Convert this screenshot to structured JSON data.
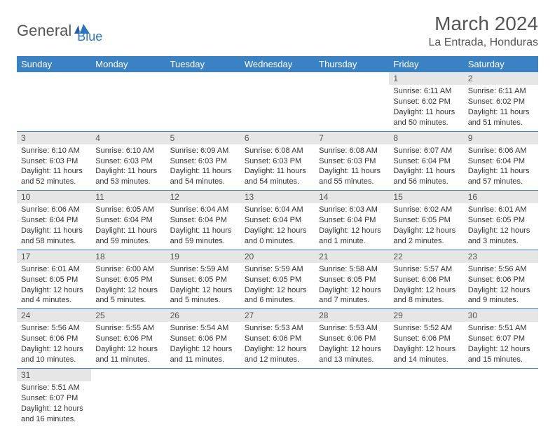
{
  "logo": {
    "text1": "General",
    "text2": "Blue"
  },
  "title": "March 2024",
  "location": "La Entrada, Honduras",
  "colors": {
    "header_bg": "#3b82c4",
    "header_text": "#ffffff",
    "daynum_bg": "#e6e6e6",
    "border": "#3b82c4",
    "text": "#333333",
    "logo_gray": "#555555",
    "logo_blue": "#2a75bb"
  },
  "weekdays": [
    "Sunday",
    "Monday",
    "Tuesday",
    "Wednesday",
    "Thursday",
    "Friday",
    "Saturday"
  ],
  "weeks": [
    [
      null,
      null,
      null,
      null,
      null,
      {
        "n": "1",
        "sr": "Sunrise: 6:11 AM",
        "ss": "Sunset: 6:02 PM",
        "dl": "Daylight: 11 hours and 50 minutes."
      },
      {
        "n": "2",
        "sr": "Sunrise: 6:11 AM",
        "ss": "Sunset: 6:02 PM",
        "dl": "Daylight: 11 hours and 51 minutes."
      }
    ],
    [
      {
        "n": "3",
        "sr": "Sunrise: 6:10 AM",
        "ss": "Sunset: 6:03 PM",
        "dl": "Daylight: 11 hours and 52 minutes."
      },
      {
        "n": "4",
        "sr": "Sunrise: 6:10 AM",
        "ss": "Sunset: 6:03 PM",
        "dl": "Daylight: 11 hours and 53 minutes."
      },
      {
        "n": "5",
        "sr": "Sunrise: 6:09 AM",
        "ss": "Sunset: 6:03 PM",
        "dl": "Daylight: 11 hours and 54 minutes."
      },
      {
        "n": "6",
        "sr": "Sunrise: 6:08 AM",
        "ss": "Sunset: 6:03 PM",
        "dl": "Daylight: 11 hours and 54 minutes."
      },
      {
        "n": "7",
        "sr": "Sunrise: 6:08 AM",
        "ss": "Sunset: 6:03 PM",
        "dl": "Daylight: 11 hours and 55 minutes."
      },
      {
        "n": "8",
        "sr": "Sunrise: 6:07 AM",
        "ss": "Sunset: 6:04 PM",
        "dl": "Daylight: 11 hours and 56 minutes."
      },
      {
        "n": "9",
        "sr": "Sunrise: 6:06 AM",
        "ss": "Sunset: 6:04 PM",
        "dl": "Daylight: 11 hours and 57 minutes."
      }
    ],
    [
      {
        "n": "10",
        "sr": "Sunrise: 6:06 AM",
        "ss": "Sunset: 6:04 PM",
        "dl": "Daylight: 11 hours and 58 minutes."
      },
      {
        "n": "11",
        "sr": "Sunrise: 6:05 AM",
        "ss": "Sunset: 6:04 PM",
        "dl": "Daylight: 11 hours and 59 minutes."
      },
      {
        "n": "12",
        "sr": "Sunrise: 6:04 AM",
        "ss": "Sunset: 6:04 PM",
        "dl": "Daylight: 11 hours and 59 minutes."
      },
      {
        "n": "13",
        "sr": "Sunrise: 6:04 AM",
        "ss": "Sunset: 6:04 PM",
        "dl": "Daylight: 12 hours and 0 minutes."
      },
      {
        "n": "14",
        "sr": "Sunrise: 6:03 AM",
        "ss": "Sunset: 6:04 PM",
        "dl": "Daylight: 12 hours and 1 minute."
      },
      {
        "n": "15",
        "sr": "Sunrise: 6:02 AM",
        "ss": "Sunset: 6:05 PM",
        "dl": "Daylight: 12 hours and 2 minutes."
      },
      {
        "n": "16",
        "sr": "Sunrise: 6:01 AM",
        "ss": "Sunset: 6:05 PM",
        "dl": "Daylight: 12 hours and 3 minutes."
      }
    ],
    [
      {
        "n": "17",
        "sr": "Sunrise: 6:01 AM",
        "ss": "Sunset: 6:05 PM",
        "dl": "Daylight: 12 hours and 4 minutes."
      },
      {
        "n": "18",
        "sr": "Sunrise: 6:00 AM",
        "ss": "Sunset: 6:05 PM",
        "dl": "Daylight: 12 hours and 5 minutes."
      },
      {
        "n": "19",
        "sr": "Sunrise: 5:59 AM",
        "ss": "Sunset: 6:05 PM",
        "dl": "Daylight: 12 hours and 5 minutes."
      },
      {
        "n": "20",
        "sr": "Sunrise: 5:59 AM",
        "ss": "Sunset: 6:05 PM",
        "dl": "Daylight: 12 hours and 6 minutes."
      },
      {
        "n": "21",
        "sr": "Sunrise: 5:58 AM",
        "ss": "Sunset: 6:05 PM",
        "dl": "Daylight: 12 hours and 7 minutes."
      },
      {
        "n": "22",
        "sr": "Sunrise: 5:57 AM",
        "ss": "Sunset: 6:06 PM",
        "dl": "Daylight: 12 hours and 8 minutes."
      },
      {
        "n": "23",
        "sr": "Sunrise: 5:56 AM",
        "ss": "Sunset: 6:06 PM",
        "dl": "Daylight: 12 hours and 9 minutes."
      }
    ],
    [
      {
        "n": "24",
        "sr": "Sunrise: 5:56 AM",
        "ss": "Sunset: 6:06 PM",
        "dl": "Daylight: 12 hours and 10 minutes."
      },
      {
        "n": "25",
        "sr": "Sunrise: 5:55 AM",
        "ss": "Sunset: 6:06 PM",
        "dl": "Daylight: 12 hours and 11 minutes."
      },
      {
        "n": "26",
        "sr": "Sunrise: 5:54 AM",
        "ss": "Sunset: 6:06 PM",
        "dl": "Daylight: 12 hours and 11 minutes."
      },
      {
        "n": "27",
        "sr": "Sunrise: 5:53 AM",
        "ss": "Sunset: 6:06 PM",
        "dl": "Daylight: 12 hours and 12 minutes."
      },
      {
        "n": "28",
        "sr": "Sunrise: 5:53 AM",
        "ss": "Sunset: 6:06 PM",
        "dl": "Daylight: 12 hours and 13 minutes."
      },
      {
        "n": "29",
        "sr": "Sunrise: 5:52 AM",
        "ss": "Sunset: 6:06 PM",
        "dl": "Daylight: 12 hours and 14 minutes."
      },
      {
        "n": "30",
        "sr": "Sunrise: 5:51 AM",
        "ss": "Sunset: 6:07 PM",
        "dl": "Daylight: 12 hours and 15 minutes."
      }
    ],
    [
      {
        "n": "31",
        "sr": "Sunrise: 5:51 AM",
        "ss": "Sunset: 6:07 PM",
        "dl": "Daylight: 12 hours and 16 minutes."
      },
      null,
      null,
      null,
      null,
      null,
      null
    ]
  ]
}
